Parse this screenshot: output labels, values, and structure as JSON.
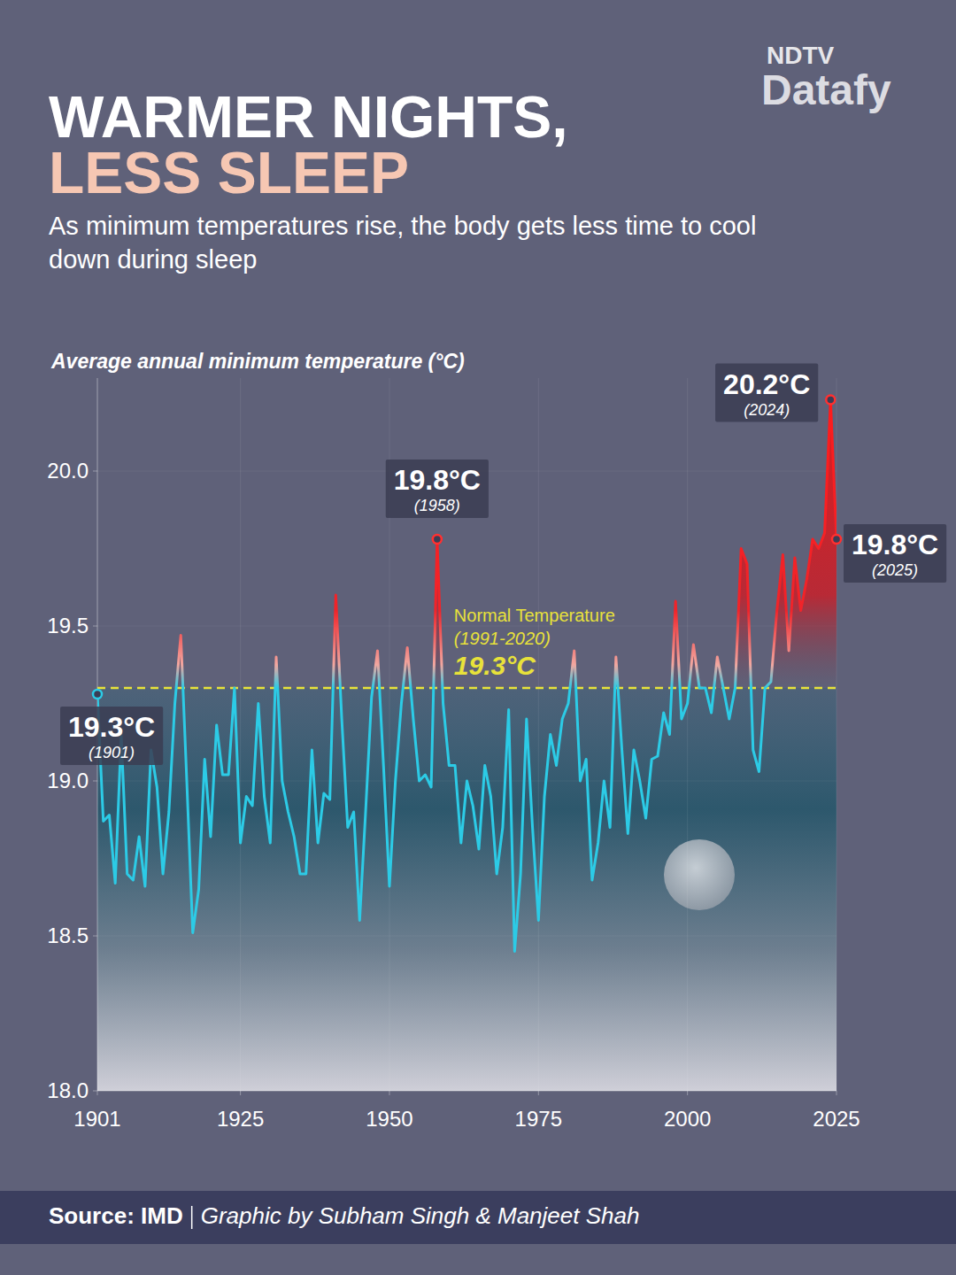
{
  "chart_data": {
    "type": "line",
    "logo_top": "NDTV",
    "logo_bottom": "Datafy",
    "title": "WARMER NIGHTS,",
    "title_highlight": "LESS SLEEP",
    "subtitle": "As minimum temperatures rise, the body gets less time to cool down during sleep",
    "y_label": "Average annual minimum temperature (°C)",
    "color": "#2ccbe6",
    "grid": true,
    "x": [
      1901,
      1902,
      1903,
      1904,
      1905,
      1906,
      1907,
      1908,
      1909,
      1910,
      1911,
      1912,
      1913,
      1914,
      1915,
      1916,
      1917,
      1918,
      1919,
      1920,
      1921,
      1922,
      1923,
      1924,
      1925,
      1926,
      1927,
      1928,
      1929,
      1930,
      1931,
      1932,
      1933,
      1934,
      1935,
      1936,
      1937,
      1938,
      1939,
      1940,
      1941,
      1942,
      1943,
      1944,
      1945,
      1946,
      1947,
      1948,
      1949,
      1950,
      1951,
      1952,
      1953,
      1954,
      1955,
      1956,
      1957,
      1958,
      1959,
      1960,
      1961,
      1962,
      1963,
      1964,
      1965,
      1966,
      1967,
      1968,
      1969,
      1970,
      1971,
      1972,
      1973,
      1974,
      1975,
      1976,
      1977,
      1978,
      1979,
      1980,
      1981,
      1982,
      1983,
      1984,
      1985,
      1986,
      1987,
      1988,
      1989,
      1990,
      1991,
      1992,
      1993,
      1994,
      1995,
      1996,
      1997,
      1998,
      1999,
      2000,
      2001,
      2002,
      2003,
      2004,
      2005,
      2006,
      2007,
      2008,
      2009,
      2010,
      2011,
      2012,
      2013,
      2014,
      2015,
      2016,
      2017,
      2018,
      2019,
      2020,
      2021,
      2022,
      2023,
      2024,
      2025
    ],
    "values": [
      19.28,
      18.87,
      18.89,
      18.67,
      19.15,
      18.7,
      18.68,
      18.82,
      18.66,
      19.1,
      18.98,
      18.7,
      18.9,
      19.25,
      19.47,
      19.0,
      18.51,
      18.65,
      19.07,
      18.82,
      19.18,
      19.02,
      19.02,
      19.3,
      18.8,
      18.95,
      18.92,
      19.25,
      18.95,
      18.8,
      19.4,
      19.0,
      18.9,
      18.82,
      18.7,
      18.7,
      19.1,
      18.8,
      18.96,
      18.94,
      19.6,
      19.2,
      18.85,
      18.9,
      18.55,
      18.9,
      19.27,
      19.42,
      19.05,
      18.66,
      19.0,
      19.25,
      19.43,
      19.2,
      19.0,
      19.02,
      18.98,
      19.78,
      19.25,
      19.05,
      19.05,
      18.8,
      19.0,
      18.92,
      18.78,
      19.05,
      18.95,
      18.7,
      18.85,
      19.23,
      18.45,
      18.7,
      19.2,
      18.85,
      18.55,
      18.95,
      19.15,
      19.05,
      19.2,
      19.25,
      19.42,
      19.0,
      19.07,
      18.68,
      18.8,
      19.0,
      18.85,
      19.4,
      19.1,
      18.83,
      19.1,
      19.0,
      18.88,
      19.07,
      19.08,
      19.22,
      19.15,
      19.58,
      19.2,
      19.25,
      19.44,
      19.3,
      19.3,
      19.22,
      19.4,
      19.3,
      19.2,
      19.3,
      19.75,
      19.7,
      19.1,
      19.03,
      19.3,
      19.32,
      19.55,
      19.73,
      19.42,
      19.72,
      19.55,
      19.65,
      19.78,
      19.75,
      19.8,
      20.23,
      19.78
    ],
    "xlim": [
      1901,
      2025
    ],
    "xticks": [
      1901,
      1925,
      1950,
      1975,
      2000,
      2025
    ],
    "ylim": [
      18,
      20.3
    ],
    "yticks": [
      {
        "value": 18,
        "label": "18.0"
      },
      18.5,
      {
        "value": 19,
        "label": "19.0"
      },
      19.5,
      {
        "value": 20,
        "label": "20.0"
      }
    ],
    "reference": {
      "value": 19.3,
      "label": "Normal Temperature",
      "period": "(1991-2020)",
      "value_label": "19.3°C",
      "color": "#e8e23a"
    },
    "annotations": [
      {
        "x": 1901,
        "y": 19.28,
        "label": "19.3°C",
        "sublabel": "(1901)"
      },
      {
        "x": 1958,
        "y": 19.78,
        "label": "19.8°C",
        "sublabel": "(1958)"
      },
      {
        "x": 2024,
        "y": 20.23,
        "label": "20.2°C",
        "sublabel": "(2024)"
      },
      {
        "x": 2025,
        "y": 19.78,
        "label": "19.8°C",
        "sublabel": "(2025)"
      }
    ],
    "source": "Source: IMD",
    "credit": "Graphic by Subham Singh & Manjeet Shah"
  }
}
